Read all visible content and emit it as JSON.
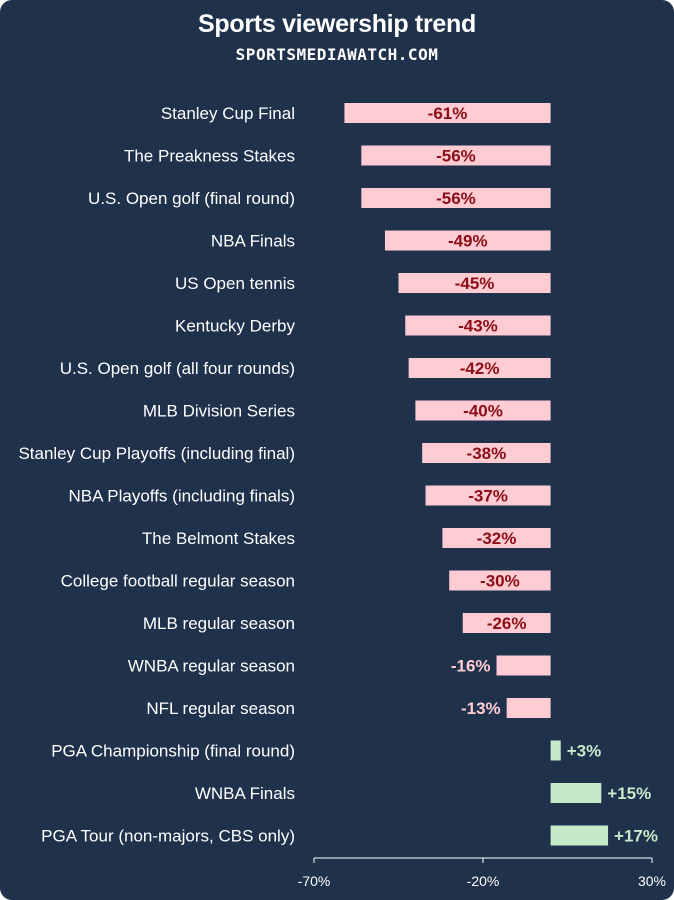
{
  "header": {
    "title": "Sports viewership trend",
    "subtitle": "SPORTSMEDIAWATCH.COM"
  },
  "colors": {
    "background": "#1f314b",
    "negative_bar": "#ffccd3",
    "negative_text": "#8b0d16",
    "negative_text_outside": "#ffccd3",
    "positive_bar": "#c6e9c8",
    "positive_text": "#c6e9c8",
    "axis": "#ffffff"
  },
  "chart_data": {
    "type": "bar",
    "orientation": "horizontal",
    "title": "Sports viewership trend",
    "subtitle": "SPORTSMEDIAWATCH.COM",
    "xlabel": "",
    "ylabel": "",
    "xlim": [
      -70,
      30
    ],
    "x_ticks": [
      -70,
      -20,
      30
    ],
    "x_tick_labels": [
      "-70%",
      "-20%",
      "30%"
    ],
    "grid": false,
    "categories": [
      "Stanley Cup Final",
      "The Preakness Stakes",
      "U.S. Open golf (final round)",
      "NBA Finals",
      "US Open tennis",
      "Kentucky Derby",
      "U.S. Open golf (all four rounds)",
      "MLB Division Series",
      "Stanley Cup Playoffs (including final)",
      "NBA Playoffs (including finals)",
      "The Belmont Stakes",
      "College football regular season",
      "MLB regular season",
      "WNBA regular season",
      "NFL regular season",
      "PGA Championship (final round)",
      "WNBA Finals",
      "PGA Tour (non-majors, CBS only)"
    ],
    "values": [
      -61,
      -56,
      -56,
      -49,
      -45,
      -43,
      -42,
      -40,
      -38,
      -37,
      -32,
      -30,
      -26,
      -16,
      -13,
      3,
      15,
      17
    ],
    "data_labels": [
      "-61%",
      "-56%",
      "-56%",
      "-49%",
      "-45%",
      "-43%",
      "-42%",
      "-40%",
      "-38%",
      "-37%",
      "-32%",
      "-30%",
      "-26%",
      "-16%",
      "-13%",
      "+3%",
      "+15%",
      "+17%"
    ]
  }
}
